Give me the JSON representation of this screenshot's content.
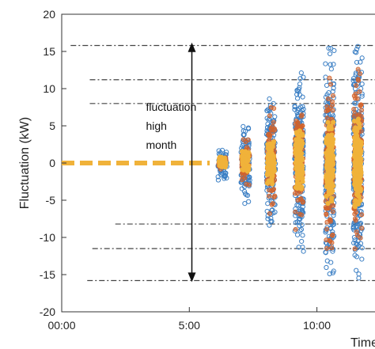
{
  "chart_data": {
    "type": "scatter",
    "title": "",
    "xlabel": "Time",
    "ylabel": "Fluctuation (kW)",
    "xlim_hours": [
      0,
      12.4
    ],
    "ylim": [
      -20,
      20
    ],
    "x_ticks": [
      {
        "label": "00:00",
        "hours": 0
      },
      {
        "label": "5:00",
        "hours": 5
      },
      {
        "label": "10:00",
        "hours": 10
      }
    ],
    "y_ticks": [
      20,
      15,
      10,
      5,
      0,
      -5,
      -10,
      -15,
      -20
    ],
    "grid": false,
    "colors": {
      "blue": "#3b7fc4",
      "orange": "#d4632a",
      "yellow": "#f0b23a",
      "line": "#333333"
    },
    "reference_lines": [
      {
        "y": 15.8,
        "x_start_hours": 0.35
      },
      {
        "y": 11.2,
        "x_start_hours": 1.1
      },
      {
        "y": 8.0,
        "x_start_hours": 1.1
      },
      {
        "y": -8.2,
        "x_start_hours": 2.1
      },
      {
        "y": -11.5,
        "x_start_hours": 1.2
      },
      {
        "y": -15.8,
        "x_start_hours": 1.0
      }
    ],
    "range_arrow": {
      "x_hours": 5.1,
      "y_top": 16.2,
      "y_bottom": -16.0
    },
    "annotation": [
      "fluctuation",
      "high",
      "month"
    ],
    "clusters": [
      {
        "x_hours": 6.3,
        "blue_spread": 2.5,
        "orange_spread": 1.0,
        "yellow_spread": 0.8
      },
      {
        "x_hours": 7.2,
        "blue_spread": 5.5,
        "orange_spread": 3.5,
        "yellow_spread": 1.8
      },
      {
        "x_hours": 8.2,
        "blue_spread": 9.0,
        "orange_spread": 7.5,
        "yellow_spread": 3.0
      },
      {
        "x_hours": 9.3,
        "blue_spread": 12.5,
        "orange_spread": 9.0,
        "yellow_spread": 4.5
      },
      {
        "x_hours": 10.5,
        "blue_spread": 15.5,
        "orange_spread": 12.0,
        "yellow_spread": 5.5
      },
      {
        "x_hours": 11.6,
        "blue_spread": 16.0,
        "orange_spread": 13.0,
        "yellow_spread": 6.0
      }
    ],
    "flat_series": {
      "x_start_hours": 0.0,
      "x_end_hours": 5.8,
      "y": 0
    }
  }
}
